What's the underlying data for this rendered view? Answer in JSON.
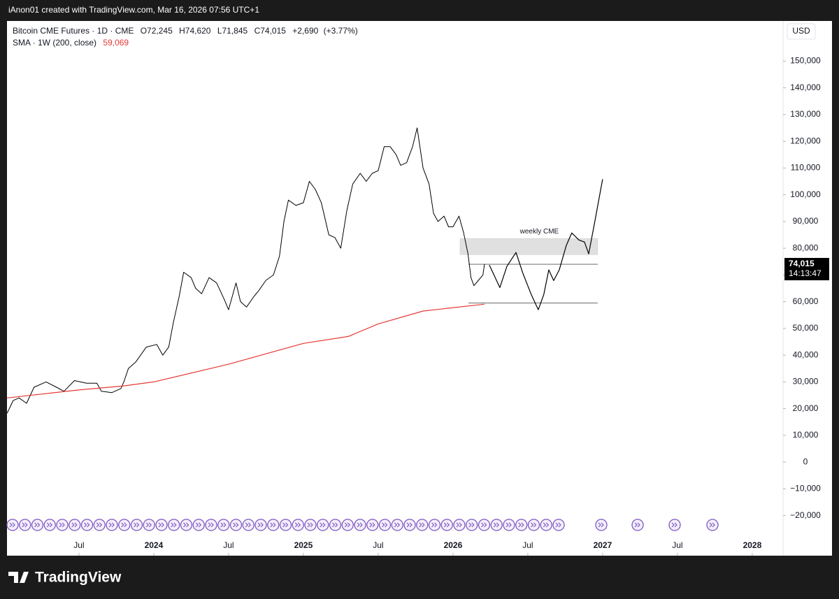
{
  "header": "iAnon01 created with TradingView.com, Mar 16, 2026 07:56 UTC+1",
  "footer": "TradingView",
  "chart_data": {
    "type": "line",
    "ohlc": [
      {
        "value": 72245,
        "label": "O72,245"
      },
      {
        "value": 74620,
        "label": "H74,620"
      },
      {
        "value": 71845,
        "label": "L71,845"
      },
      {
        "value": 74015,
        "label": "C74,015"
      }
    ],
    "change": {
      "value": 2690,
      "label": "+2,690"
    },
    "change_pct": {
      "value": 3.77,
      "label": "(+3.77%)"
    },
    "sma_value": {
      "value": 59069,
      "label": "59,069"
    },
    "currency": "USD",
    "last_price": {
      "value": 74015,
      "label": "74,015"
    },
    "countdown": "14:13:47",
    "xlim": [
      2023.019,
      2028.206
    ],
    "xticks": [
      {
        "value": 2023.5,
        "label": "Jul"
      },
      2024,
      {
        "value": 2024.5,
        "label": "Jul"
      },
      2025,
      {
        "value": 2025.5,
        "label": "Jul"
      },
      2026,
      {
        "value": 2026.5,
        "label": "Jul"
      },
      2027,
      {
        "value": 2027.5,
        "label": "Jul"
      },
      2028
    ],
    "ylim": [
      -35000,
      165000
    ],
    "yticks": [
      {
        "value": -20000,
        "label": "−20,000"
      },
      {
        "value": -10000,
        "label": "−10,000"
      },
      0,
      {
        "value": 10000,
        "label": "10,000"
      },
      {
        "value": 20000,
        "label": "20,000"
      },
      {
        "value": 30000,
        "label": "30,000"
      },
      {
        "value": 40000,
        "label": "40,000"
      },
      {
        "value": 50000,
        "label": "50,000"
      },
      {
        "value": 60000,
        "label": "60,000"
      },
      {
        "value": 70000,
        "label": "70,000"
      },
      {
        "value": 80000,
        "label": "80,000"
      },
      {
        "value": 90000,
        "label": "90,000"
      },
      {
        "value": 100000,
        "label": "100,000"
      },
      {
        "value": 110000,
        "label": "110,000"
      },
      {
        "value": 120000,
        "label": "120,000"
      },
      {
        "value": 130000,
        "label": "130,000"
      },
      {
        "value": 140000,
        "label": "140,000"
      },
      {
        "value": 150000,
        "label": "150,000"
      }
    ],
    "series": [
      {
        "name": "Bitcoin CME Futures · 1D · CME",
        "color": "#000000",
        "x": [
          2023.02,
          2023.06,
          2023.1,
          2023.15,
          2023.2,
          2023.28,
          2023.35,
          2023.4,
          2023.47,
          2023.55,
          2023.62,
          2023.65,
          2023.72,
          2023.78,
          2023.8,
          2023.83,
          2023.88,
          2023.95,
          2024.02,
          2024.06,
          2024.1,
          2024.13,
          2024.17,
          2024.2,
          2024.25,
          2024.28,
          2024.32,
          2024.37,
          2024.42,
          2024.47,
          2024.5,
          2024.55,
          2024.58,
          2024.62,
          2024.67,
          2024.7,
          2024.75,
          2024.8,
          2024.84,
          2024.87,
          2024.9,
          2024.95,
          2025.0,
          2025.04,
          2025.08,
          2025.12,
          2025.17,
          2025.21,
          2025.25,
          2025.29,
          2025.33,
          2025.38,
          2025.42,
          2025.46,
          2025.5,
          2025.54,
          2025.58,
          2025.62,
          2025.65,
          2025.69,
          2025.73,
          2025.76,
          2025.8,
          2025.84,
          2025.87,
          2025.9,
          2025.94,
          2025.97,
          2026.0,
          2026.04,
          2026.07,
          2026.1,
          2026.12,
          2026.14,
          2026.17,
          2026.2,
          2026.21
        ],
        "values": [
          18300,
          23000,
          24000,
          22000,
          28000,
          30000,
          28000,
          26500,
          30500,
          29500,
          29500,
          26500,
          26000,
          27500,
          30000,
          35000,
          37500,
          43000,
          44000,
          40000,
          43000,
          52000,
          62000,
          71000,
          69000,
          65000,
          63000,
          69000,
          67000,
          61000,
          57000,
          67000,
          60000,
          58000,
          62000,
          64000,
          68000,
          70000,
          77000,
          90000,
          98000,
          96000,
          97000,
          105000,
          102000,
          97000,
          85000,
          84000,
          80000,
          94000,
          104000,
          108000,
          105000,
          108000,
          109000,
          118000,
          118000,
          115000,
          111000,
          112000,
          118000,
          125000,
          110000,
          104000,
          93000,
          90000,
          92000,
          88000,
          88000,
          92000,
          86000,
          78000,
          69000,
          66000,
          68000,
          70000,
          74015
        ]
      },
      {
        "name": "SMA · 1W (200, close)",
        "color": "#e53935",
        "x": [
          2023.02,
          2023.5,
          2023.8,
          2024.0,
          2024.5,
          2025.0,
          2025.3,
          2025.5,
          2025.8,
          2026.21
        ],
        "values": [
          24000,
          27000,
          28500,
          30000,
          36600,
          44400,
          47000,
          51700,
          56500,
          59069
        ]
      },
      {
        "color": "#000000",
        "x": [
          2026.243,
          2026.313,
          2026.36,
          2026.421,
          2026.467,
          2026.523,
          2026.57,
          2026.607,
          2026.64,
          2026.673,
          2026.71,
          2026.757,
          2026.794,
          2026.841,
          2026.879,
          2026.907,
          2026.944,
          2027.0
        ],
        "values": [
          73700,
          65300,
          73200,
          78400,
          70600,
          62700,
          57000,
          62700,
          71900,
          67900,
          71900,
          81000,
          85700,
          83100,
          82300,
          77900,
          88800,
          105800
        ]
      }
    ],
    "drawings": {
      "zone": {
        "label": "weekly CME",
        "low": 77600,
        "high": 83600,
        "x": [
          2026.047,
          2026.967
        ]
      },
      "levels": [
        74000,
        59500
      ],
      "levels_x": [
        2026.103,
        2026.967
      ]
    }
  }
}
